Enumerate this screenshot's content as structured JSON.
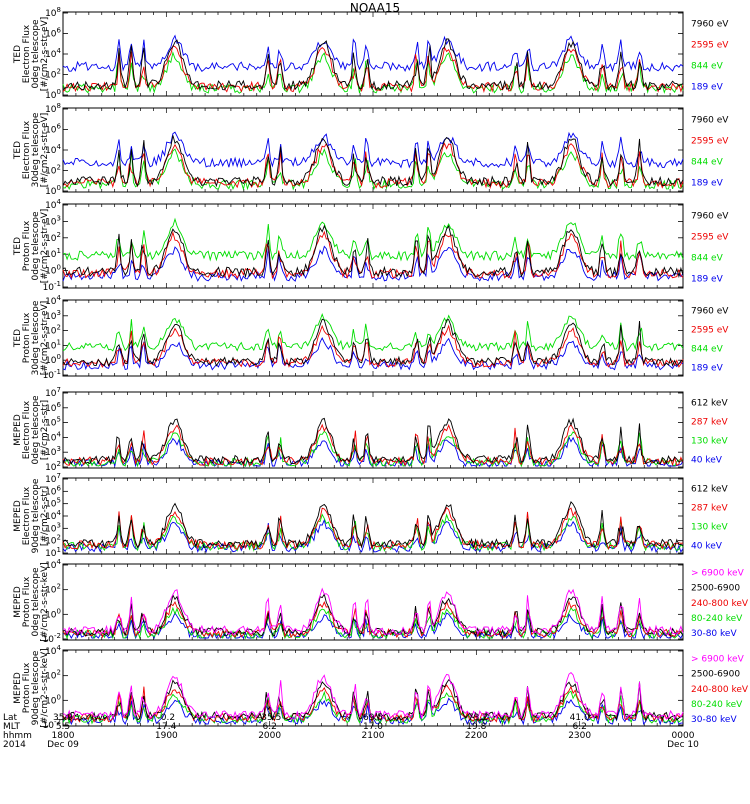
{
  "title": "NOAA15",
  "colors": {
    "black": "#000000",
    "red": "#ee0000",
    "green": "#00dd00",
    "blue": "#0000ee",
    "magenta": "#ff00ff"
  },
  "chart_data": [
    {
      "type": "line",
      "instrument": "TED",
      "ylabel": [
        "TED",
        "Electron Flux",
        "0deg telescope",
        "[#/cm2-s-str-eV]"
      ],
      "y_ticks": [
        "10^0",
        "10^2",
        "10^4",
        "10^6",
        "10^8"
      ],
      "log_scale": true,
      "legend": [
        {
          "label": "7960 eV",
          "color": "#000000"
        },
        {
          "label": "2595 eV",
          "color": "#ee0000"
        },
        {
          "label": "844 eV",
          "color": "#00dd00"
        },
        {
          "label": "189 eV",
          "color": "#0000ee"
        }
      ]
    },
    {
      "type": "line",
      "instrument": "TED",
      "ylabel": [
        "TED",
        "Electron Flux",
        "30deg telescope",
        "[#/cm2-s-str-eV]"
      ],
      "y_ticks": [
        "10^0",
        "10^2",
        "10^4",
        "10^6",
        "10^8"
      ],
      "log_scale": true,
      "legend": [
        {
          "label": "7960 eV",
          "color": "#000000"
        },
        {
          "label": "2595 eV",
          "color": "#ee0000"
        },
        {
          "label": "844 eV",
          "color": "#00dd00"
        },
        {
          "label": "189 eV",
          "color": "#0000ee"
        }
      ]
    },
    {
      "type": "line",
      "instrument": "TED",
      "ylabel": [
        "TED",
        "Proton Flux",
        "0deg telescope",
        "[#/cm2-s-str-eV]"
      ],
      "y_ticks": [
        "10^-1",
        "10^0",
        "10^1",
        "10^2",
        "10^3",
        "10^4"
      ],
      "log_scale": true,
      "legend": [
        {
          "label": "7960 eV",
          "color": "#000000"
        },
        {
          "label": "2595 eV",
          "color": "#ee0000"
        },
        {
          "label": "844 eV",
          "color": "#00dd00"
        },
        {
          "label": "189 eV",
          "color": "#0000ee"
        }
      ]
    },
    {
      "type": "line",
      "instrument": "TED",
      "ylabel": [
        "TED",
        "Proton Flux",
        "30deg telescope",
        "[#/cm2-s-str-eV]"
      ],
      "y_ticks": [
        "10^-1",
        "10^0",
        "10^1",
        "10^2",
        "10^3",
        "10^4"
      ],
      "log_scale": true,
      "legend": [
        {
          "label": "7960 eV",
          "color": "#000000"
        },
        {
          "label": "2595 eV",
          "color": "#ee0000"
        },
        {
          "label": "844 eV",
          "color": "#00dd00"
        },
        {
          "label": "189 eV",
          "color": "#0000ee"
        }
      ]
    },
    {
      "type": "line",
      "instrument": "MEPED",
      "ylabel": [
        "MEPED",
        "Electron Flux",
        "0deg telescope",
        "[#/cm2-s-str]"
      ],
      "y_ticks": [
        "10^2",
        "10^3",
        "10^4",
        "10^5",
        "10^6",
        "10^7"
      ],
      "log_scale": true,
      "legend": [
        {
          "label": "612 keV",
          "color": "#000000"
        },
        {
          "label": "287 keV",
          "color": "#ee0000"
        },
        {
          "label": "130 keV",
          "color": "#00dd00"
        },
        {
          "label": "40 keV",
          "color": "#0000ee"
        }
      ]
    },
    {
      "type": "line",
      "instrument": "MEPED",
      "ylabel": [
        "MEPED",
        "Electron Flux",
        "90deg telescope",
        "[#/cm2-s-str]"
      ],
      "y_ticks": [
        "10^1",
        "10^2",
        "10^3",
        "10^4",
        "10^5",
        "10^6",
        "10^7"
      ],
      "log_scale": true,
      "legend": [
        {
          "label": "612 keV",
          "color": "#000000"
        },
        {
          "label": "287 keV",
          "color": "#ee0000"
        },
        {
          "label": "130 keV",
          "color": "#00dd00"
        },
        {
          "label": "40 keV",
          "color": "#0000ee"
        }
      ]
    },
    {
      "type": "line",
      "instrument": "MEPED",
      "ylabel": [
        "MEPED",
        "Proton Flux",
        "0deg telescope",
        "[#/cm2-s-str-keV]"
      ],
      "y_ticks": [
        "10^-2",
        "10^0",
        "10^2",
        "10^4"
      ],
      "log_scale": true,
      "legend": [
        {
          "label": "> 6900 keV",
          "color": "#ff00ff"
        },
        {
          "label": "2500-6900",
          "color": "#000000"
        },
        {
          "label": "240-800 keV",
          "color": "#ee0000"
        },
        {
          "label": "80-240 keV",
          "color": "#00dd00"
        },
        {
          "label": "30-80 keV",
          "color": "#0000ee"
        }
      ]
    },
    {
      "type": "line",
      "instrument": "MEPED",
      "ylabel": [
        "MEPED",
        "Proton Flux",
        "90deg telescope",
        "[#/cm2-s-str-keV]"
      ],
      "y_ticks": [
        "10^-2",
        "10^0",
        "10^2",
        "10^4"
      ],
      "log_scale": true,
      "legend": [
        {
          "label": "> 6900 keV",
          "color": "#ff00ff"
        },
        {
          "label": "2500-6900",
          "color": "#000000"
        },
        {
          "label": "240-800 keV",
          "color": "#ee0000"
        },
        {
          "label": "80-240 keV",
          "color": "#00dd00"
        },
        {
          "label": "30-80 keV",
          "color": "#0000ee"
        }
      ]
    }
  ],
  "x_axis": {
    "row_labels": [
      "Lat",
      "MLT",
      "hhmm",
      "2014"
    ],
    "columns": [
      {
        "Lat": "35.9",
        "MLT": "5.5",
        "hhmm": "1800",
        "date": "Dec 09"
      },
      {
        "Lat": "-0.2",
        "MLT": "17.4",
        "hhmm": "1900",
        "date": ""
      },
      {
        "Lat": "-35.5",
        "MLT": "6.2",
        "hhmm": "2000",
        "date": ""
      },
      {
        "Lat": "69.5",
        "MLT": "17.0",
        "hhmm": "2100",
        "date": ""
      },
      {
        "Lat": "-73.2",
        "MLT": "19.8",
        "hhmm": "2200",
        "date": ""
      },
      {
        "Lat": "41.0",
        "MLT": "6.2",
        "hhmm": "2300",
        "date": ""
      },
      {
        "Lat": "",
        "MLT": "",
        "hhmm": "0000",
        "date": "Dec 10"
      }
    ]
  }
}
